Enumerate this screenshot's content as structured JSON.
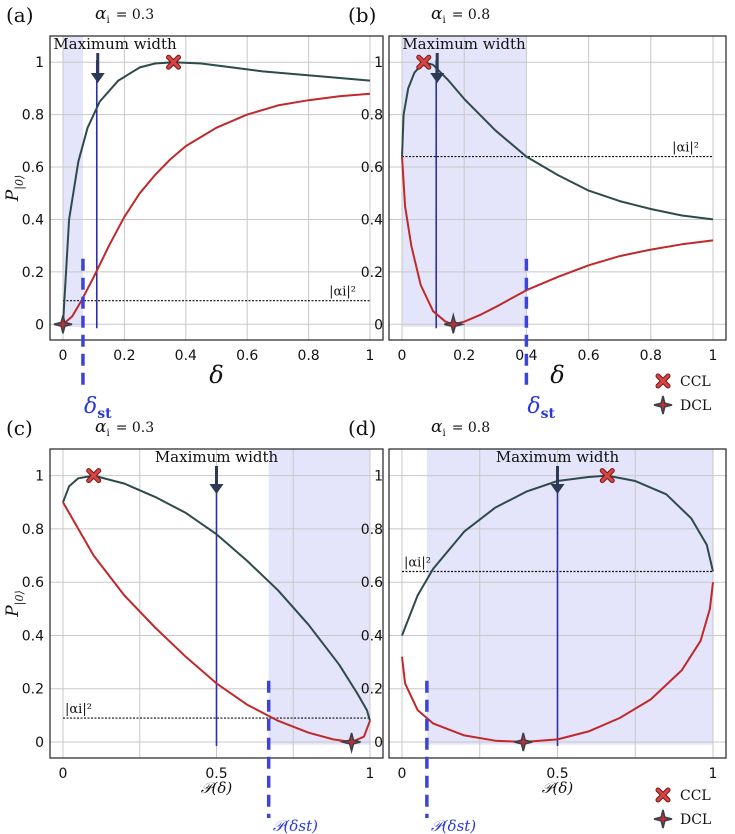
{
  "colors": {
    "upper_curve": "#2e4a4a",
    "lower_curve": "#c0292b",
    "vertical_line": "#2b2fa8",
    "dashed": "#3b44d6",
    "shade": "#e4e4fa",
    "grid": "#c8c8c8",
    "arrow": "#2c3a55"
  },
  "legend": {
    "ccl": "CCL",
    "dcl": "DCL"
  },
  "chart_data": [
    {
      "panel": "(a)",
      "alpha_label": "α",
      "alpha_sub": "i",
      "alpha_value": "= 0.3",
      "type": "line",
      "xlabel": "δ",
      "ylabel": "P",
      "ylabel_sub": "|0⟩",
      "xlim": [
        0,
        1
      ],
      "ylim": [
        -0.06,
        1.1
      ],
      "xticks": [
        "0",
        "0.2",
        "0.4",
        "0.6",
        "0.8",
        "1"
      ],
      "yticks": [
        "0",
        "0.2",
        "0.4",
        "0.6",
        "0.8",
        "1"
      ],
      "grid": true,
      "shaded_x": [
        0,
        0.065
      ],
      "hline": {
        "y": 0.09,
        "label": "|αi|²"
      },
      "max_width": {
        "x": 0.11,
        "label": "Maximum width"
      },
      "delta_st": {
        "x": 0.065,
        "label": "δst"
      },
      "ccl": {
        "x": 0.36,
        "y": 1.0
      },
      "dcl": {
        "x": 0.0,
        "y": 0.0
      },
      "series": [
        {
          "x": [
            0,
            0.02,
            0.05,
            0.08,
            0.12,
            0.18,
            0.25,
            0.3,
            0.36,
            0.45,
            0.55,
            0.65,
            0.75,
            0.85,
            1.0
          ],
          "y": [
            0.0,
            0.4,
            0.62,
            0.75,
            0.85,
            0.93,
            0.98,
            0.995,
            1.0,
            0.995,
            0.98,
            0.965,
            0.955,
            0.945,
            0.93
          ]
        },
        {
          "x": [
            0,
            0.03,
            0.06,
            0.1,
            0.15,
            0.2,
            0.25,
            0.3,
            0.35,
            0.4,
            0.5,
            0.6,
            0.7,
            0.8,
            0.9,
            1.0
          ],
          "y": [
            0.0,
            0.03,
            0.09,
            0.18,
            0.3,
            0.41,
            0.5,
            0.57,
            0.63,
            0.68,
            0.75,
            0.8,
            0.835,
            0.855,
            0.87,
            0.88
          ]
        }
      ]
    },
    {
      "panel": "(b)",
      "alpha_label": "α",
      "alpha_sub": "i",
      "alpha_value": "= 0.8",
      "type": "line",
      "xlabel": "δ",
      "ylabel": "",
      "xlim": [
        0,
        1
      ],
      "ylim": [
        -0.06,
        1.1
      ],
      "xticks": [
        "0",
        "0.2",
        "0.4",
        "0.6",
        "0.8",
        "1"
      ],
      "yticks": [
        "0",
        "0.2",
        "0.4",
        "0.6",
        "0.8",
        "1"
      ],
      "grid": true,
      "shaded_x": [
        0,
        0.4
      ],
      "hline": {
        "y": 0.64,
        "label": "|αi|²"
      },
      "max_width": {
        "x": 0.11,
        "label": "Maximum width"
      },
      "delta_st": {
        "x": 0.4,
        "label": "δst"
      },
      "ccl": {
        "x": 0.07,
        "y": 1.0
      },
      "dcl": {
        "x": 0.165,
        "y": 0.0
      },
      "series": [
        {
          "x": [
            0,
            0.005,
            0.02,
            0.04,
            0.07,
            0.1,
            0.15,
            0.2,
            0.3,
            0.4,
            0.5,
            0.6,
            0.7,
            0.8,
            0.9,
            1.0
          ],
          "y": [
            0.64,
            0.8,
            0.9,
            0.96,
            1.0,
            0.99,
            0.93,
            0.86,
            0.74,
            0.64,
            0.57,
            0.51,
            0.47,
            0.44,
            0.415,
            0.4
          ]
        },
        {
          "x": [
            0,
            0.01,
            0.03,
            0.06,
            0.1,
            0.14,
            0.165,
            0.2,
            0.25,
            0.3,
            0.4,
            0.5,
            0.6,
            0.7,
            0.8,
            0.9,
            1.0
          ],
          "y": [
            0.64,
            0.45,
            0.3,
            0.15,
            0.05,
            0.01,
            0.0,
            0.01,
            0.035,
            0.065,
            0.13,
            0.18,
            0.225,
            0.26,
            0.285,
            0.305,
            0.32
          ]
        }
      ]
    },
    {
      "panel": "(c)",
      "alpha_label": "α",
      "alpha_sub": "i",
      "alpha_value": "= 0.3",
      "type": "line",
      "xlabel": "𝒫(δ)",
      "ylabel": "P",
      "ylabel_sub": "|0⟩",
      "xlim": [
        0,
        1
      ],
      "ylim": [
        -0.06,
        1.1
      ],
      "xticks": [
        "0",
        "0.5",
        "1"
      ],
      "yticks": [
        "0",
        "0.2",
        "0.4",
        "0.6",
        "0.8",
        "1"
      ],
      "grid": true,
      "shaded_x": [
        0.67,
        1.0
      ],
      "hline": {
        "y": 0.09,
        "label": "|αi|²"
      },
      "max_width": {
        "x": 0.5,
        "label": "Maximum width"
      },
      "delta_st": {
        "x": 0.67,
        "label": "𝒫(δst)"
      },
      "ccl": {
        "x": 0.1,
        "y": 1.0
      },
      "dcl": {
        "x": 0.94,
        "y": 0.0
      },
      "series": [
        {
          "x": [
            0,
            0.02,
            0.05,
            0.1,
            0.2,
            0.3,
            0.4,
            0.5,
            0.6,
            0.7,
            0.8,
            0.9,
            0.96,
            0.99,
            1.0
          ],
          "y": [
            0.9,
            0.96,
            0.99,
            1.0,
            0.97,
            0.92,
            0.86,
            0.78,
            0.68,
            0.57,
            0.44,
            0.29,
            0.18,
            0.12,
            0.08
          ]
        },
        {
          "x": [
            0,
            0.05,
            0.1,
            0.2,
            0.3,
            0.4,
            0.5,
            0.6,
            0.7,
            0.8,
            0.88,
            0.94,
            0.98,
            1.0
          ],
          "y": [
            0.9,
            0.8,
            0.7,
            0.55,
            0.43,
            0.32,
            0.22,
            0.14,
            0.08,
            0.035,
            0.01,
            0.0,
            0.02,
            0.08
          ]
        }
      ]
    },
    {
      "panel": "(d)",
      "alpha_label": "α",
      "alpha_sub": "i",
      "alpha_value": "= 0.8",
      "type": "line",
      "xlabel": "𝒫(δ)",
      "ylabel": "",
      "xlim": [
        0,
        1
      ],
      "ylim": [
        -0.06,
        1.1
      ],
      "xticks": [
        "0",
        "0.5",
        "1"
      ],
      "yticks": [
        "0",
        "0.2",
        "0.4",
        "0.6",
        "0.8",
        "1"
      ],
      "grid": true,
      "shaded_x": [
        0.08,
        1.0
      ],
      "hline": {
        "y": 0.64,
        "label": "|αi|²"
      },
      "max_width": {
        "x": 0.5,
        "label": "Maximum width"
      },
      "delta_st": {
        "x": 0.08,
        "label": "𝒫(δst)"
      },
      "ccl": {
        "x": 0.66,
        "y": 1.0
      },
      "dcl": {
        "x": 0.39,
        "y": 0.0
      },
      "series": [
        {
          "x": [
            0,
            0.05,
            0.1,
            0.2,
            0.3,
            0.4,
            0.5,
            0.6,
            0.66,
            0.75,
            0.85,
            0.93,
            0.98,
            1.0
          ],
          "y": [
            0.4,
            0.55,
            0.65,
            0.79,
            0.88,
            0.94,
            0.98,
            0.995,
            1.0,
            0.98,
            0.93,
            0.84,
            0.74,
            0.64
          ]
        },
        {
          "x": [
            0,
            0.01,
            0.05,
            0.1,
            0.2,
            0.3,
            0.39,
            0.5,
            0.6,
            0.7,
            0.8,
            0.9,
            0.96,
            0.99,
            1.0
          ],
          "y": [
            0.32,
            0.22,
            0.12,
            0.07,
            0.025,
            0.005,
            0.0,
            0.01,
            0.04,
            0.09,
            0.16,
            0.27,
            0.38,
            0.5,
            0.6
          ]
        }
      ]
    }
  ]
}
